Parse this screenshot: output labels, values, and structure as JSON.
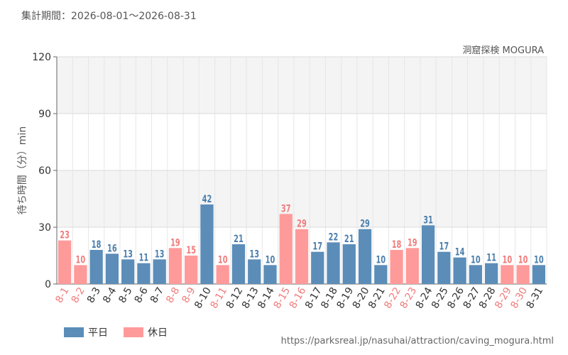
{
  "header": {
    "period": "集計期間：2026-08-01～2026-08-31"
  },
  "chart_subtitle": "洞窟探検 MOGURA",
  "source": "https://parksreal.jp/nasuhai/attraction/caving_mogura.html",
  "colors": {
    "weekday": "#5b8db8",
    "holiday": "#ff9a9a",
    "weekday_text": "#4a7fae",
    "holiday_text": "#f07c7c"
  },
  "chart_data": {
    "type": "bar",
    "ylabel": "待ち時間（分）min",
    "ylim": [
      0,
      120
    ],
    "yticks": [
      0,
      30,
      60,
      90,
      120
    ],
    "grid": true,
    "legend_position": "bottom-left",
    "legend": [
      {
        "name": "平日",
        "kind": "weekday"
      },
      {
        "name": "休日",
        "kind": "holiday"
      }
    ],
    "categories": [
      "8-1",
      "8-2",
      "8-3",
      "8-4",
      "8-5",
      "8-6",
      "8-7",
      "8-8",
      "8-9",
      "8-10",
      "8-11",
      "8-12",
      "8-13",
      "8-14",
      "8-15",
      "8-16",
      "8-17",
      "8-18",
      "8-19",
      "8-20",
      "8-21",
      "8-22",
      "8-23",
      "8-24",
      "8-25",
      "8-26",
      "8-27",
      "8-28",
      "8-29",
      "8-30",
      "8-31"
    ],
    "values": [
      23,
      10,
      18,
      16,
      13,
      11,
      13,
      19,
      15,
      42,
      10,
      21,
      13,
      10,
      37,
      29,
      17,
      22,
      21,
      29,
      10,
      18,
      19,
      31,
      17,
      14,
      10,
      11,
      10,
      10,
      10
    ],
    "day_type": [
      "holiday",
      "holiday",
      "weekday",
      "weekday",
      "weekday",
      "weekday",
      "weekday",
      "holiday",
      "holiday",
      "weekday",
      "holiday",
      "weekday",
      "weekday",
      "weekday",
      "holiday",
      "holiday",
      "weekday",
      "weekday",
      "weekday",
      "weekday",
      "weekday",
      "holiday",
      "holiday",
      "weekday",
      "weekday",
      "weekday",
      "weekday",
      "weekday",
      "holiday",
      "holiday",
      "weekday"
    ]
  }
}
